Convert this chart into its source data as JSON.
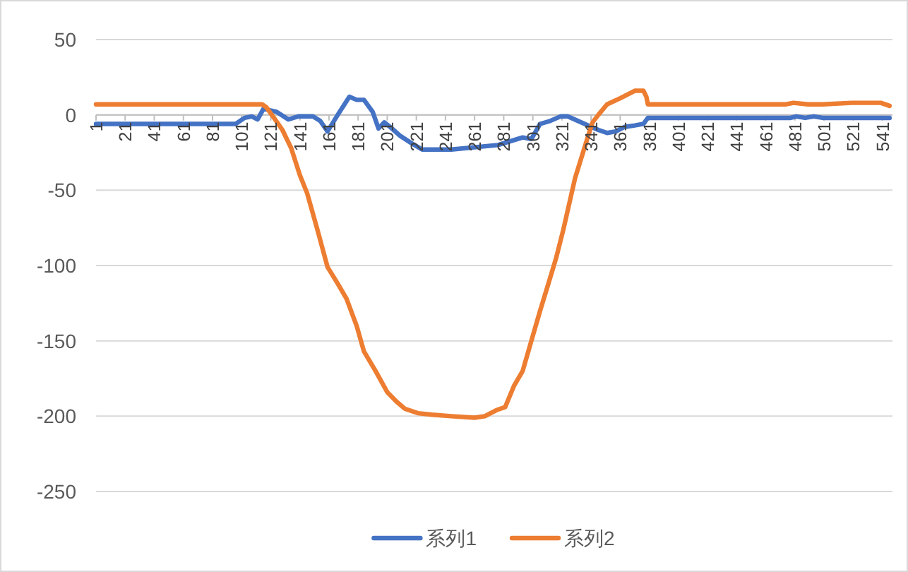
{
  "chart_data": {
    "type": "line",
    "xlim": [
      1,
      548
    ],
    "xticks": [
      1,
      21,
      41,
      61,
      81,
      101,
      121,
      141,
      161,
      181,
      201,
      221,
      241,
      261,
      281,
      301,
      321,
      341,
      361,
      381,
      401,
      421,
      441,
      461,
      481,
      501,
      521,
      541
    ],
    "ylim": [
      -250,
      50
    ],
    "yticks": [
      -250,
      -200,
      -150,
      -100,
      -50,
      0,
      50
    ],
    "grid": "y",
    "legend": "bottom",
    "marker": "none",
    "line_style": "solid",
    "series": [
      {
        "name": "系列1",
        "color": "#4472c4",
        "x": [
          1,
          97,
          103,
          108,
          112,
          116,
          125,
          133,
          140,
          150,
          155,
          160,
          167,
          175,
          180,
          185,
          191,
          195,
          199,
          203,
          210,
          218,
          225,
          245,
          277,
          294,
          300,
          306,
          313,
          320,
          325,
          332,
          339,
          346,
          352,
          358,
          364,
          371,
          377,
          380,
          420,
          478,
          482,
          488,
          494,
          500,
          504,
          546
        ],
        "values": [
          -6,
          -6,
          -2,
          -1,
          -3,
          4,
          2,
          -3,
          -1,
          -1,
          -4,
          -11,
          0,
          12,
          10,
          10,
          2,
          -9,
          -5,
          -8,
          -14,
          -19,
          -23,
          -23,
          -20,
          -15,
          -16,
          -6,
          -4,
          -1,
          -1,
          -4,
          -7,
          -10,
          -12,
          -11,
          -8,
          -7,
          -6,
          -2,
          -2,
          -2,
          -1,
          -2,
          -1,
          -2,
          -2,
          -2
        ]
      },
      {
        "name": "系列2",
        "color": "#ed7d31",
        "x": [
          1,
          60,
          115,
          118,
          124,
          129,
          135,
          141,
          146,
          153,
          160,
          167,
          173,
          180,
          185,
          193,
          201,
          207,
          213,
          222,
          232,
          245,
          261,
          268,
          276,
          282,
          288,
          294,
          300,
          306,
          312,
          317,
          322,
          330,
          339,
          342,
          346,
          352,
          361,
          371,
          377,
          379,
          380,
          420,
          475,
          480,
          490,
          500,
          520,
          540,
          546
        ],
        "values": [
          7,
          7,
          7,
          5,
          -3,
          -10,
          -22,
          -40,
          -52,
          -76,
          -101,
          -112,
          -122,
          -140,
          -157,
          -170,
          -184,
          -190,
          -195,
          -198,
          -199,
          -200,
          -201,
          -200,
          -196,
          -194,
          -180,
          -170,
          -150,
          -130,
          -111,
          -95,
          -76,
          -42,
          -14,
          -5,
          0,
          7,
          11,
          16,
          16,
          12,
          7,
          7,
          7,
          8,
          7,
          7,
          8,
          8,
          6
        ]
      }
    ]
  }
}
